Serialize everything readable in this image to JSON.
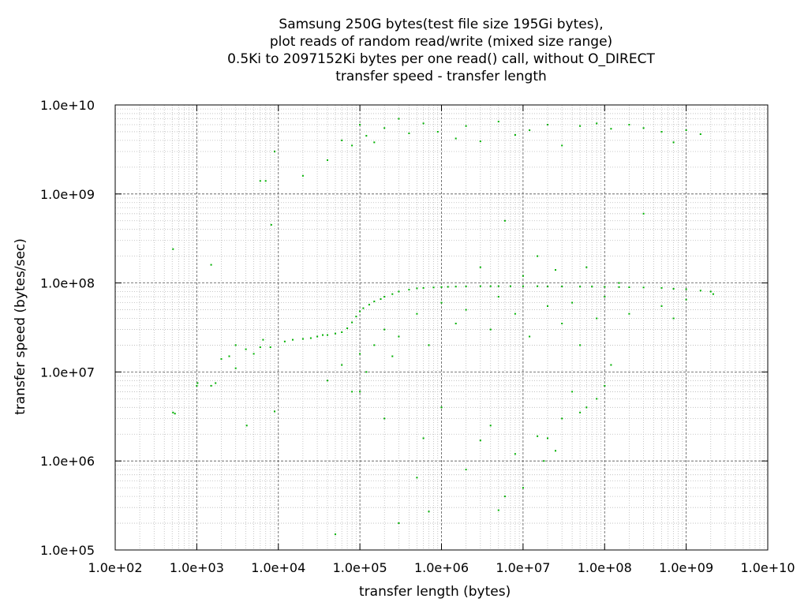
{
  "chart_data": {
    "type": "scatter",
    "title_lines": [
      "Samsung 250G bytes(test file size 195Gi bytes),",
      "plot reads of random read/write (mixed size range)",
      "0.5Ki to 2097152Ki bytes per one read() call, without O_DIRECT",
      "transfer speed - transfer length"
    ],
    "xlabel": "transfer length (bytes)",
    "ylabel": "transfer speed (bytes/sec)",
    "x_scale": "log",
    "y_scale": "log",
    "xlim": [
      100,
      10000000000
    ],
    "ylim": [
      100000,
      10000000000
    ],
    "x_ticks": [
      {
        "value": 100,
        "label": "1.0e+02"
      },
      {
        "value": 1000,
        "label": "1.0e+03"
      },
      {
        "value": 10000,
        "label": "1.0e+04"
      },
      {
        "value": 100000,
        "label": "1.0e+05"
      },
      {
        "value": 1000000,
        "label": "1.0e+06"
      },
      {
        "value": 10000000,
        "label": "1.0e+07"
      },
      {
        "value": 100000000,
        "label": "1.0e+08"
      },
      {
        "value": 1000000000,
        "label": "1.0e+09"
      },
      {
        "value": 10000000000,
        "label": "1.0e+10"
      }
    ],
    "y_ticks": [
      {
        "value": 100000,
        "label": "1.0e+05"
      },
      {
        "value": 1000000,
        "label": "1.0e+06"
      },
      {
        "value": 10000000,
        "label": "1.0e+07"
      },
      {
        "value": 100000000,
        "label": "1.0e+08"
      },
      {
        "value": 1000000000,
        "label": "1.0e+09"
      },
      {
        "value": 10000000000,
        "label": "1.0e+10"
      }
    ],
    "grid": true,
    "grid_minor": true,
    "point_color": "#00b000",
    "series": [
      {
        "x": [
          512,
          512,
          540,
          1000,
          1024,
          1500,
          1700,
          2000,
          2500,
          3000,
          4000,
          4096,
          5000,
          6000,
          6500,
          7000,
          8000,
          8192,
          9000,
          12000,
          15000,
          20000,
          25000,
          30000,
          35000,
          40000,
          50000,
          60000,
          70000,
          80000,
          90000,
          100000,
          110000,
          130000,
          150000,
          180000,
          200000,
          250000,
          300000,
          400000,
          500000,
          600000,
          800000,
          1000000,
          1200000,
          1500000,
          2000000,
          3000000,
          4000000,
          5000000,
          7000000,
          10000000,
          15000000,
          20000000,
          30000000,
          50000000,
          70000000,
          100000000,
          150000000,
          200000000,
          300000000,
          500000000,
          700000000,
          1000000000,
          1500000000,
          2000000000,
          2147483648
        ],
        "y": [
          240000000,
          3500000,
          3400000,
          7000000,
          7500000,
          160000000,
          7500000,
          14000000,
          15000000,
          11000000,
          18000000,
          2500000,
          16000000,
          19000000,
          23000000,
          1400000000,
          19000000,
          450000000,
          3600000,
          22000000,
          23000000,
          23500000,
          24000000,
          25000000,
          26000000,
          26000000,
          27000000,
          28000000,
          31000000,
          36000000,
          42000000,
          48000000,
          52000000,
          57000000,
          62000000,
          66000000,
          70000000,
          75000000,
          80000000,
          84000000,
          87000000,
          88000000,
          89000000,
          90000000,
          90500000,
          91000000,
          91500000,
          92000000,
          92000000,
          92000000,
          92000000,
          92000000,
          92000000,
          91500000,
          91500000,
          91000000,
          91000000,
          90500000,
          90000000,
          89500000,
          89000000,
          88000000,
          86000000,
          85000000,
          82000000,
          80000000,
          75000000
        ]
      },
      {
        "x": [
          1500,
          3000,
          6000,
          9000,
          20000,
          40000,
          60000,
          80000,
          100000,
          120000,
          150000,
          200000,
          300000,
          400000,
          600000,
          900000,
          1500000,
          2000000,
          3000000,
          5000000,
          8000000,
          12000000,
          20000000,
          30000000,
          50000000,
          80000000,
          120000000,
          200000000,
          300000000,
          500000000,
          700000000,
          1000000000,
          1500000000
        ],
        "y": [
          7000000,
          20000000,
          1400000000,
          3000000000,
          1600000000,
          2400000000,
          4000000000,
          3500000000,
          6000000000,
          4500000000,
          3800000000,
          5500000000,
          7000000000,
          4800000000,
          6200000000,
          5000000000,
          4200000000,
          5800000000,
          3900000000,
          6500000000,
          4600000000,
          5200000000,
          6000000000,
          3500000000,
          5800000000,
          6200000000,
          5400000000,
          6000000000,
          5500000000,
          5000000000,
          3800000000,
          5200000000,
          4700000000
        ]
      },
      {
        "x": [
          40000,
          60000,
          80000,
          100000,
          120000,
          150000,
          200000,
          250000,
          300000,
          500000,
          700000,
          1000000,
          1500000,
          2000000,
          3000000,
          4000000,
          5000000,
          6000000,
          8000000,
          10000000,
          12000000,
          15000000,
          20000000,
          25000000,
          30000000,
          40000000,
          50000000,
          60000000,
          80000000,
          100000000,
          150000000,
          200000000,
          300000000,
          500000000,
          700000000,
          1000000000
        ],
        "y": [
          8000000,
          12000000,
          6000000,
          16000000,
          10000000,
          20000000,
          30000000,
          15000000,
          25000000,
          45000000,
          20000000,
          60000000,
          35000000,
          50000000,
          150000000,
          30000000,
          70000000,
          500000000,
          45000000,
          120000000,
          25000000,
          200000000,
          55000000,
          140000000,
          35000000,
          60000000,
          20000000,
          150000000,
          40000000,
          70000000,
          100000000,
          45000000,
          600000000,
          55000000,
          40000000,
          65000000
        ]
      },
      {
        "x": [
          50000,
          100000,
          200000,
          300000,
          500000,
          600000,
          700000,
          1000000,
          2000000,
          3000000,
          4000000,
          5000000,
          6000000,
          8000000,
          10000000,
          15000000,
          18000000,
          20000000,
          25000000,
          30000000,
          40000000,
          50000000,
          60000000,
          80000000,
          100000000,
          120000000
        ],
        "y": [
          150000,
          6000000,
          3000000,
          200000,
          650000,
          1800000,
          270000,
          4000000,
          800000,
          1700000,
          2500000,
          280000,
          400000,
          1200000,
          500000,
          1900000,
          1000000,
          1800000,
          1300000,
          3000000,
          6000000,
          3500000,
          4000000,
          5000000,
          7000000,
          12000000
        ]
      }
    ]
  }
}
